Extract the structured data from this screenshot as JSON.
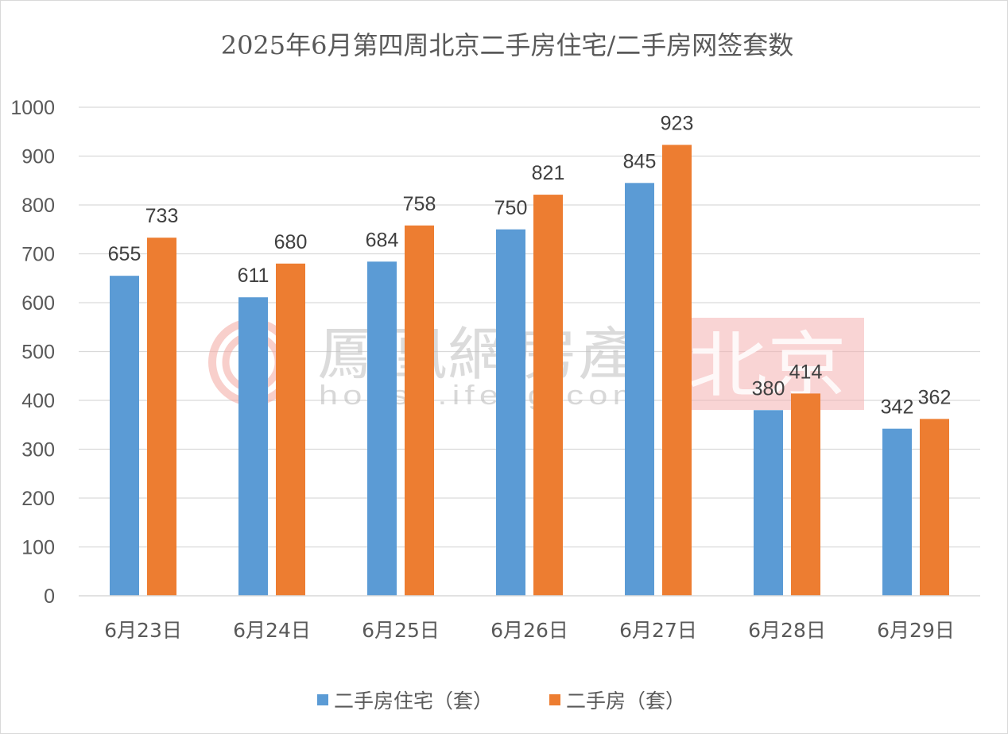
{
  "chart_data": {
    "type": "bar",
    "title": "2025年6月第四周北京二手房住宅/二手房网签套数",
    "categories": [
      "6月23日",
      "6月24日",
      "6月25日",
      "6月26日",
      "6月27日",
      "6月28日",
      "6月29日"
    ],
    "series": [
      {
        "name": "二手房住宅（套）",
        "values": [
          655,
          611,
          684,
          750,
          845,
          380,
          342
        ],
        "color": "#5b9bd5"
      },
      {
        "name": "二手房（套）",
        "values": [
          733,
          680,
          758,
          821,
          923,
          414,
          362
        ],
        "color": "#ed7d31"
      }
    ],
    "ylim": [
      0,
      1000
    ],
    "yticks": [
      "0",
      "100",
      "200",
      "300",
      "400",
      "500",
      "600",
      "700",
      "800",
      "900",
      "1000"
    ],
    "grid": true,
    "legend_position": "bottom",
    "data_labels": true
  },
  "watermark": {
    "brand": "鳳凰網房產",
    "url": "house.ifeng.com",
    "city": "北京",
    "city_bg_color": "#f4b0b0",
    "logo_color": "#f3a7a0"
  }
}
